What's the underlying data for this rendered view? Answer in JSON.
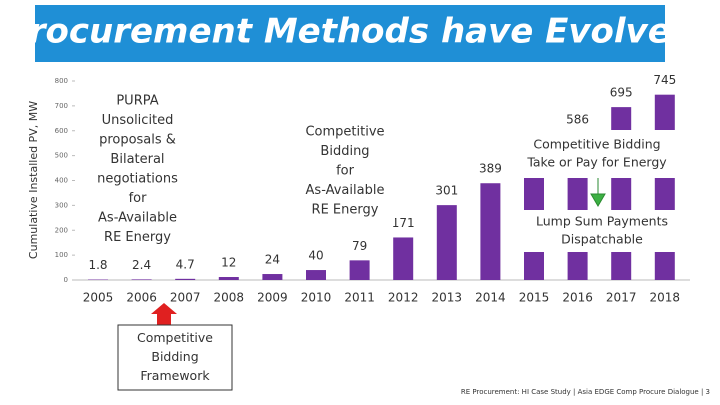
{
  "chart_data": {
    "type": "bar",
    "title": "Procurement Methods have Evolved",
    "y_label": "Cumulative Installed PV, MW",
    "categories": [
      "2005",
      "2006",
      "2007",
      "2008",
      "2009",
      "2010",
      "2011",
      "2012",
      "2013",
      "2014",
      "2015",
      "2016",
      "2017",
      "2018"
    ],
    "values": [
      1.8,
      2.4,
      4.7,
      12,
      24,
      40,
      79,
      171,
      301,
      389,
      480,
      586,
      695,
      745
    ],
    "value_labels": [
      "1.8",
      "2.4",
      "4.7",
      "12",
      "24",
      "40",
      "79",
      "171",
      "301",
      "389",
      null,
      "586",
      "695",
      "745"
    ],
    "color": "#7030a0",
    "ylim": [
      0,
      800
    ],
    "yticks": [
      0,
      100,
      200,
      300,
      400,
      500,
      600,
      700,
      800
    ],
    "annotations": [
      {
        "lines": [
          "PURPA",
          "Unsolicited",
          "proposals &",
          "Bilateral",
          "negotiations",
          "for",
          "As-Available",
          "RE Energy"
        ]
      },
      {
        "lines": [
          "Competitive",
          "Bidding",
          "for",
          "As-Available",
          "RE Energy"
        ]
      },
      {
        "lines": [
          "Competitive Bidding",
          "Take or Pay for Energy"
        ]
      },
      {
        "lines": [
          "Lump Sum Payments",
          "Dispatchable"
        ]
      },
      {
        "lines": [
          "Competitive",
          "Bidding",
          "Framework"
        ]
      }
    ],
    "footer": "RE Procurement: HI Case Study | Asia EDGE Comp Procure Dialogue | 3"
  }
}
